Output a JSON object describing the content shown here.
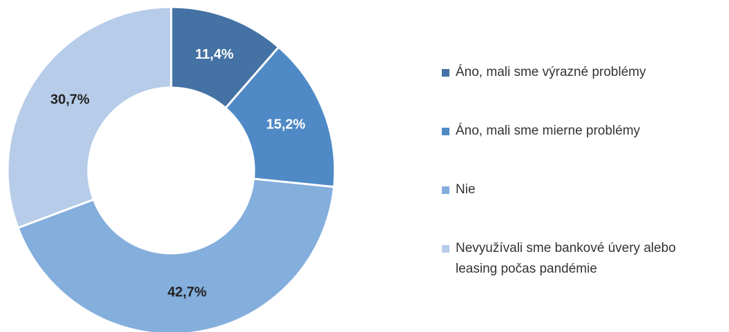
{
  "chart_data": {
    "type": "donut",
    "categories": [
      "Áno, mali sme výrazné problémy",
      "Áno, mali sme mierne problémy",
      "Nie",
      "Nevyužívali sme bankové úvery alebo leasing počas pandémie"
    ],
    "values": [
      11.4,
      15.2,
      42.7,
      30.7
    ],
    "value_labels": [
      "11,4%",
      "15,2%",
      "42,7%",
      "30,7%"
    ],
    "colors": [
      "#4472a4",
      "#4f8ac6",
      "#84aedc",
      "#b7cce8"
    ]
  }
}
